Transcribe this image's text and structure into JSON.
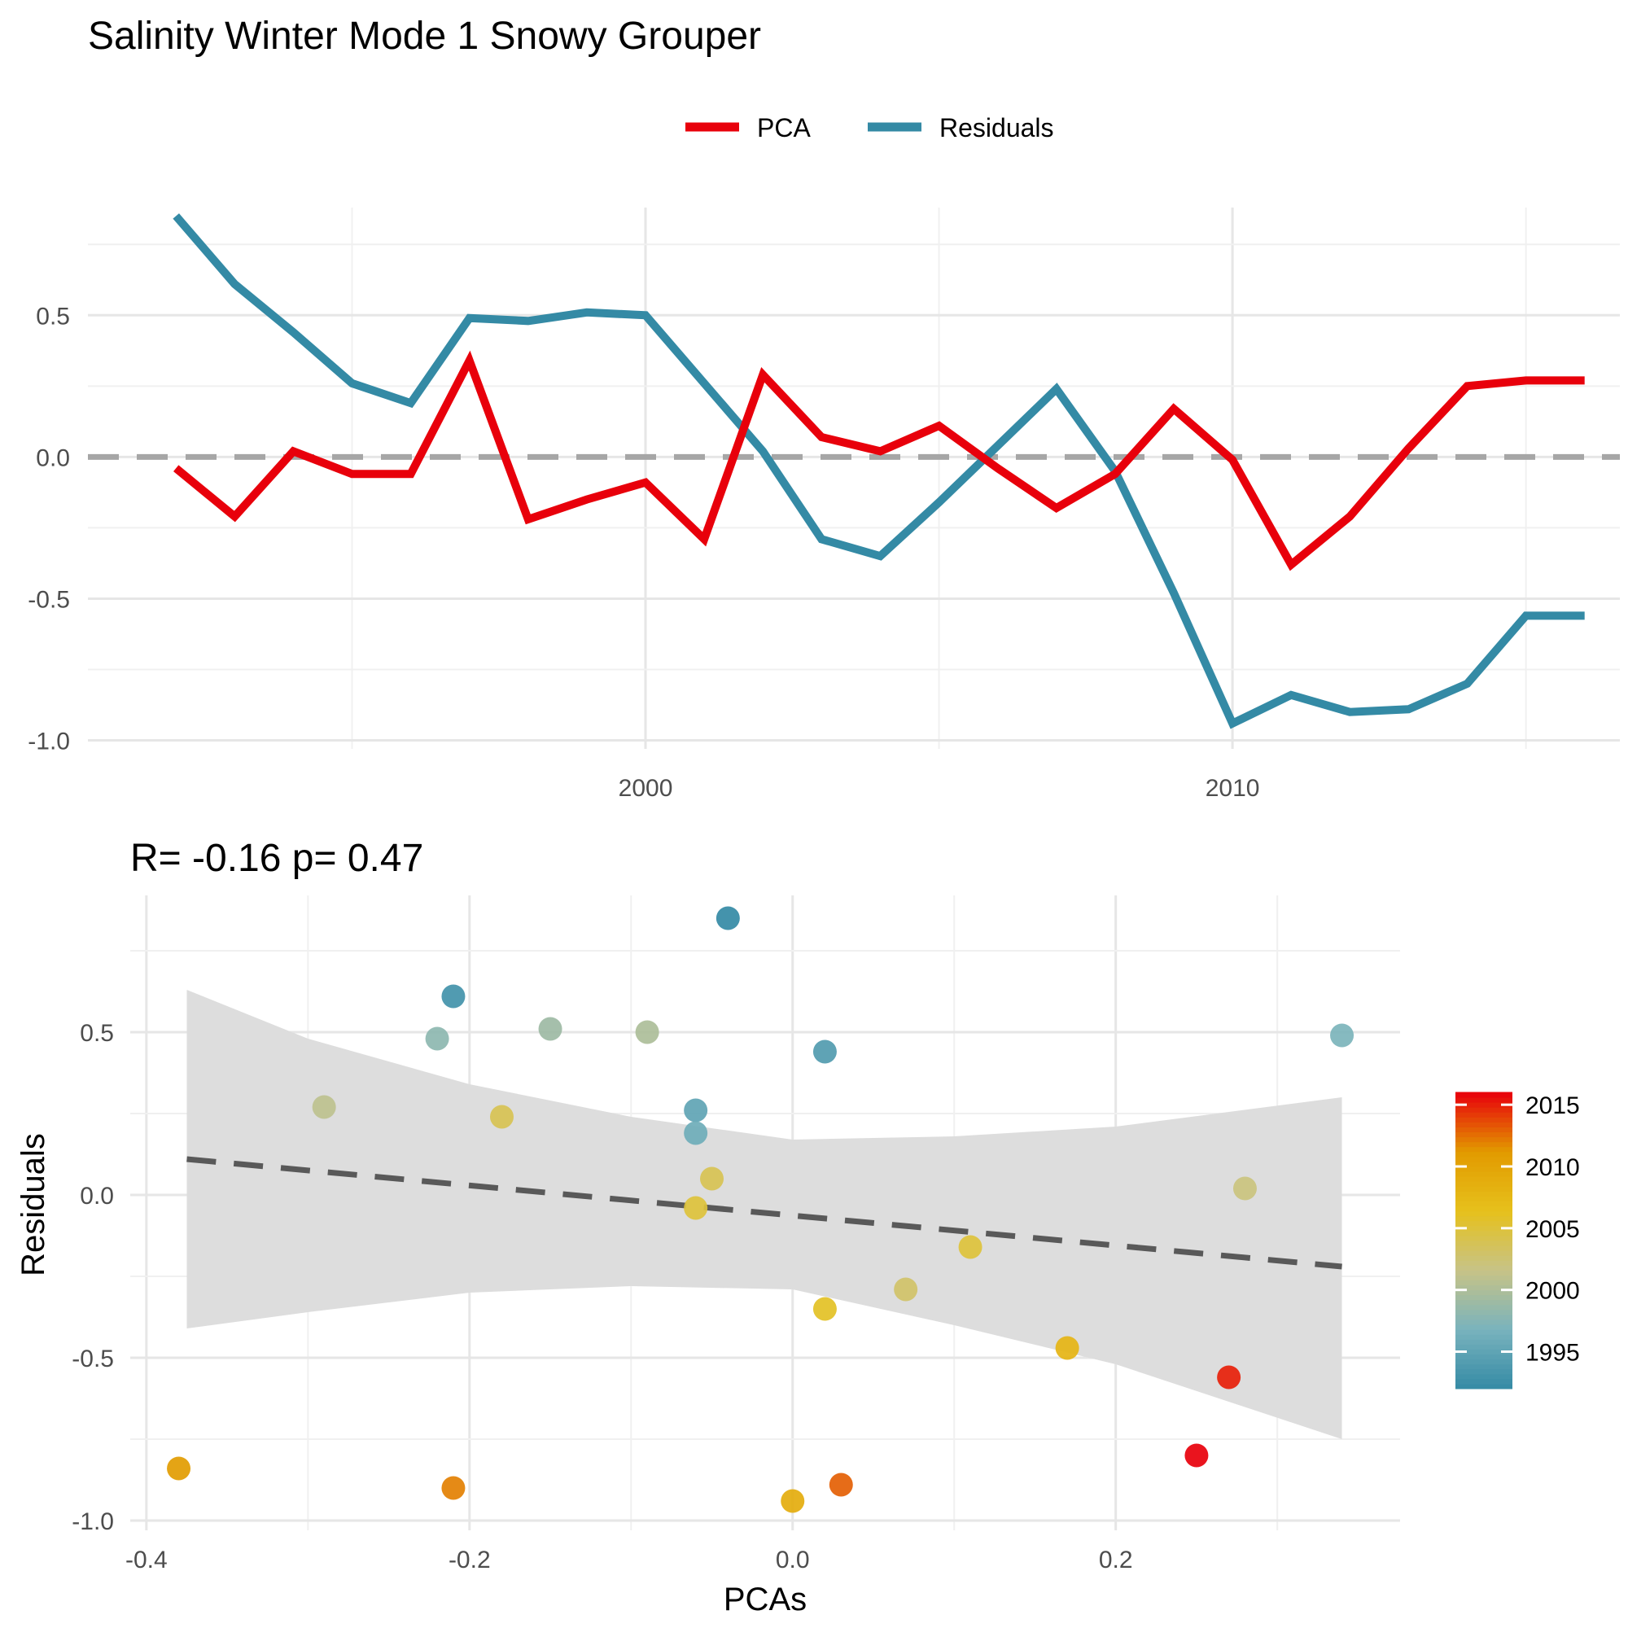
{
  "title": "Salinity Winter Mode 1 Snowy Grouper",
  "legend": {
    "items": [
      {
        "label": "PCA",
        "color": "#e8000b"
      },
      {
        "label": "Residuals",
        "color": "#348aa5"
      }
    ]
  },
  "colors": {
    "pca": "#e8000b",
    "residuals": "#348aa5",
    "zero_line": "#a6a6a6",
    "ribbon": "#dddddd",
    "trend_line": "#595959"
  },
  "chart_data": [
    {
      "type": "line",
      "title": "",
      "xlabel": "",
      "ylabel": "",
      "x_ticks": [
        2000,
        2010
      ],
      "y_ticks": [
        0.5,
        0.0,
        -0.5,
        -1.0
      ],
      "y_tick_labels": [
        "0.5",
        "0.0",
        "-0.5",
        "-1.0"
      ],
      "xlim": [
        1990.5,
        2016.6
      ],
      "ylim": [
        -1.03,
        0.88
      ],
      "zero_line": {
        "y": 0,
        "style": "dashed"
      },
      "corner_text": "",
      "legend_position": "top",
      "x": [
        1992,
        1993,
        1994,
        1995,
        1996,
        1997,
        1998,
        1999,
        2000,
        2001,
        2002,
        2003,
        2004,
        2005,
        2006,
        2007,
        2008,
        2009,
        2010,
        2011,
        2012,
        2013,
        2014,
        2015,
        2016
      ],
      "series": [
        {
          "name": "PCA",
          "color": "#e8000b",
          "values": [
            -0.04,
            -0.21,
            0.02,
            -0.06,
            -0.06,
            0.34,
            -0.22,
            -0.15,
            -0.09,
            -0.29,
            0.29,
            0.07,
            0.02,
            0.11,
            -0.04,
            -0.18,
            -0.06,
            0.17,
            -0.01,
            -0.38,
            -0.21,
            0.03,
            0.25,
            0.27,
            0.27
          ]
        },
        {
          "name": "Residuals",
          "color": "#348aa5",
          "values": [
            0.85,
            0.61,
            0.44,
            0.26,
            0.19,
            0.49,
            0.48,
            0.51,
            0.5,
            0.26,
            0.02,
            -0.29,
            -0.35,
            -0.16,
            0.04,
            0.24,
            -0.05,
            -0.48,
            -0.94,
            -0.84,
            -0.9,
            -0.89,
            -0.8,
            -0.56,
            -0.56
          ]
        }
      ]
    },
    {
      "type": "scatter",
      "title": "R= -0.16  p= 0.47",
      "xlabel": "PCAs",
      "ylabel": "Residuals",
      "x_ticks": [
        -0.4,
        -0.2,
        0.0,
        0.2
      ],
      "x_tick_labels": [
        "-0.4",
        "-0.2",
        "0.0",
        "0.2"
      ],
      "y_ticks": [
        0.5,
        0.0,
        -0.5,
        -1.0
      ],
      "y_tick_labels": [
        "0.5",
        "0.0",
        "-0.5",
        "-1.0"
      ],
      "xlim": [
        -0.41,
        0.376
      ],
      "ylim": [
        -1.03,
        0.92
      ],
      "colorbar": {
        "ticks": [
          1995,
          2000,
          2005,
          2010,
          2015
        ],
        "range": [
          1992,
          2016
        ],
        "colors": [
          "#348aa5",
          "#79b3bd",
          "#c7c387",
          "#e6c11c",
          "#e29a00",
          "#e8000b"
        ],
        "position": "right"
      },
      "points": [
        {
          "x": -0.04,
          "y": 0.85,
          "year": 1992
        },
        {
          "x": -0.21,
          "y": 0.61,
          "year": 1993
        },
        {
          "x": 0.02,
          "y": 0.44,
          "year": 1994
        },
        {
          "x": -0.06,
          "y": 0.26,
          "year": 1995
        },
        {
          "x": -0.06,
          "y": 0.19,
          "year": 1996
        },
        {
          "x": 0.34,
          "y": 0.49,
          "year": 1997
        },
        {
          "x": -0.22,
          "y": 0.48,
          "year": 1998
        },
        {
          "x": -0.15,
          "y": 0.51,
          "year": 1999
        },
        {
          "x": -0.09,
          "y": 0.5,
          "year": 2000
        },
        {
          "x": -0.29,
          "y": 0.27,
          "year": 2001
        },
        {
          "x": 0.28,
          "y": 0.02,
          "year": 2002
        },
        {
          "x": 0.07,
          "y": -0.29,
          "year": 2003
        },
        {
          "x": -0.18,
          "y": 0.24,
          "year": 2004
        },
        {
          "x": 0.11,
          "y": -0.16,
          "year": 2005
        },
        {
          "x": -0.06,
          "y": -0.04,
          "year": 2005
        },
        {
          "x": -0.05,
          "y": 0.05,
          "year": 2004
        },
        {
          "x": 0.02,
          "y": -0.35,
          "year": 2006
        },
        {
          "x": 0.17,
          "y": -0.47,
          "year": 2008
        },
        {
          "x": 0.0,
          "y": -0.94,
          "year": 2009
        },
        {
          "x": -0.21,
          "y": -0.9,
          "year": 2012
        },
        {
          "x": -0.38,
          "y": -0.84,
          "year": 2011
        },
        {
          "x": 0.03,
          "y": -0.89,
          "year": 2013
        },
        {
          "x": 0.25,
          "y": -0.8,
          "year": 2016
        },
        {
          "x": 0.27,
          "y": -0.56,
          "year": 2015
        }
      ],
      "trend": {
        "x": [
          -0.375,
          0.34
        ],
        "y": [
          0.11,
          -0.22
        ],
        "style": "dashed"
      },
      "ribbon": {
        "x": [
          -0.375,
          -0.3,
          -0.2,
          -0.1,
          0.0,
          0.1,
          0.2,
          0.34
        ],
        "upper": [
          0.63,
          0.48,
          0.34,
          0.24,
          0.17,
          0.18,
          0.21,
          0.3
        ],
        "lower": [
          -0.41,
          -0.36,
          -0.3,
          -0.28,
          -0.29,
          -0.4,
          -0.52,
          -0.75
        ]
      }
    }
  ]
}
